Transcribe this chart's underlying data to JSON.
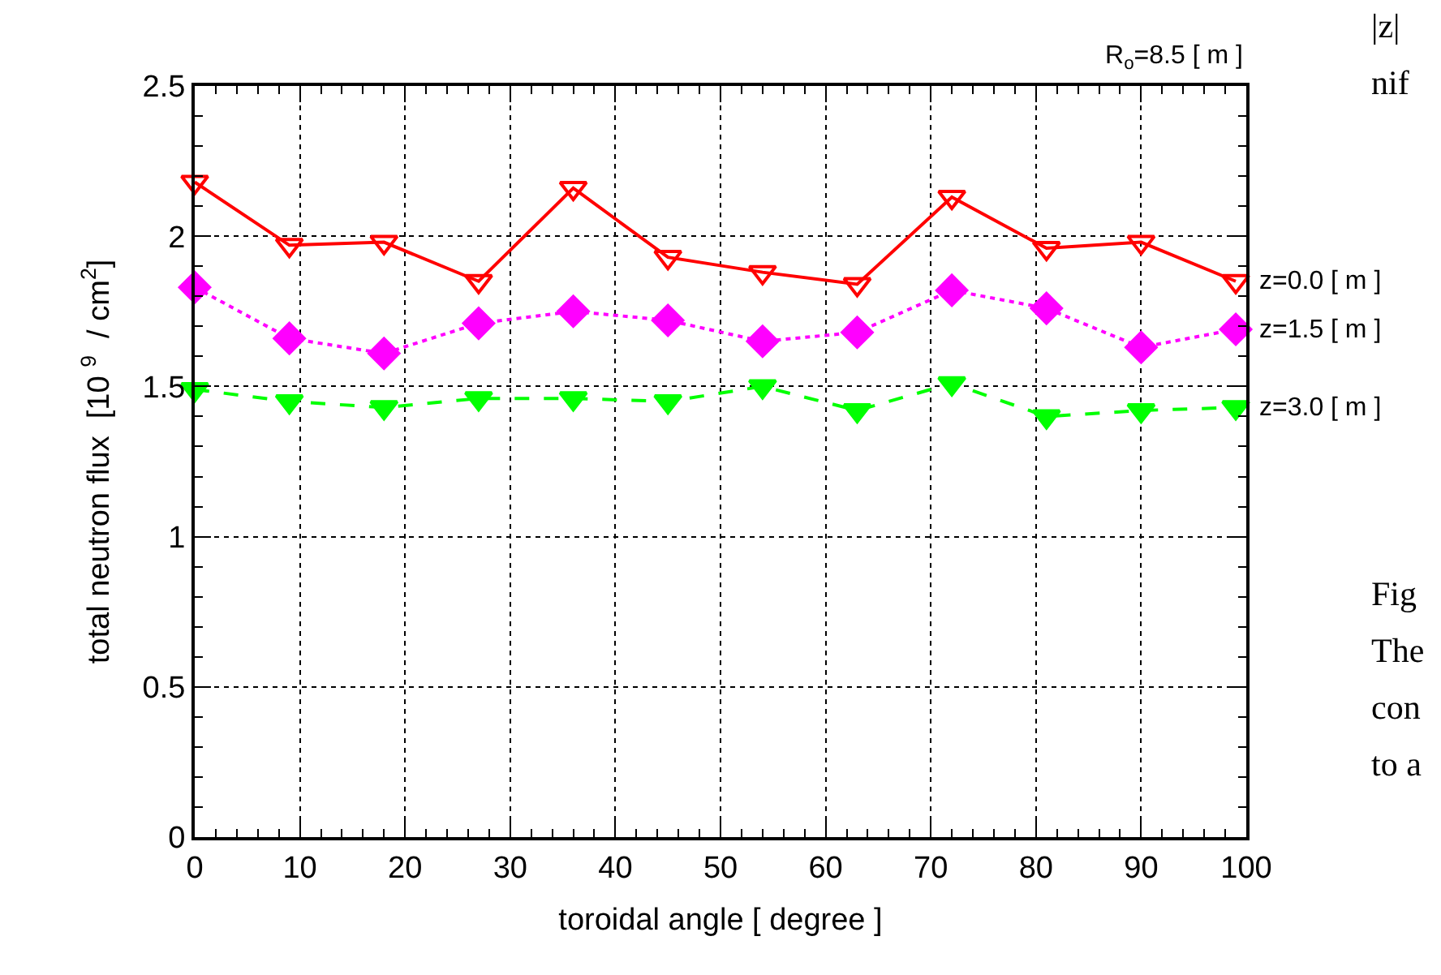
{
  "chart_data": {
    "type": "line",
    "xlabel": "toroidal angle [ degree ]",
    "ylabel": "total neutron flux  [10 $^{9}$  / cm$^{2}$]",
    "x": [
      0,
      9,
      18,
      27,
      36,
      45,
      54,
      63,
      72,
      81,
      90,
      99
    ],
    "xlim": [
      0,
      100
    ],
    "xticks": [
      0,
      10,
      20,
      30,
      40,
      50,
      60,
      70,
      80,
      90,
      100
    ],
    "ylim": [
      0,
      2.5
    ],
    "yticks": [
      0,
      0.5,
      1,
      1.5,
      2,
      2.5
    ],
    "grid": true,
    "legend": false,
    "series": [
      {
        "name": "z=0.0 [ m ]",
        "color": "#ff0000",
        "marker": "triangle-down-open",
        "line_style": "solid",
        "values": [
          2.18,
          1.97,
          1.98,
          1.85,
          2.16,
          1.93,
          1.88,
          1.84,
          2.13,
          1.96,
          1.98,
          1.85
        ]
      },
      {
        "name": "z=1.5 [ m ]",
        "color": "#ff00ff",
        "marker": "diamond",
        "line_style": "dotted",
        "values": [
          1.83,
          1.66,
          1.61,
          1.71,
          1.75,
          1.72,
          1.65,
          1.68,
          1.82,
          1.76,
          1.63,
          1.69
        ]
      },
      {
        "name": "z=3.0 [ m ]",
        "color": "#00ff00",
        "marker": "triangle-down",
        "line_style": "dashed",
        "values": [
          1.49,
          1.45,
          1.43,
          1.46,
          1.46,
          1.45,
          1.5,
          1.42,
          1.51,
          1.4,
          1.42,
          1.43
        ]
      }
    ],
    "annotations": [
      "R$_{o}$=8.5 [ m ]",
      "|z| ",
      "nif",
      "Fig",
      "The",
      "con",
      "to a"
    ]
  }
}
